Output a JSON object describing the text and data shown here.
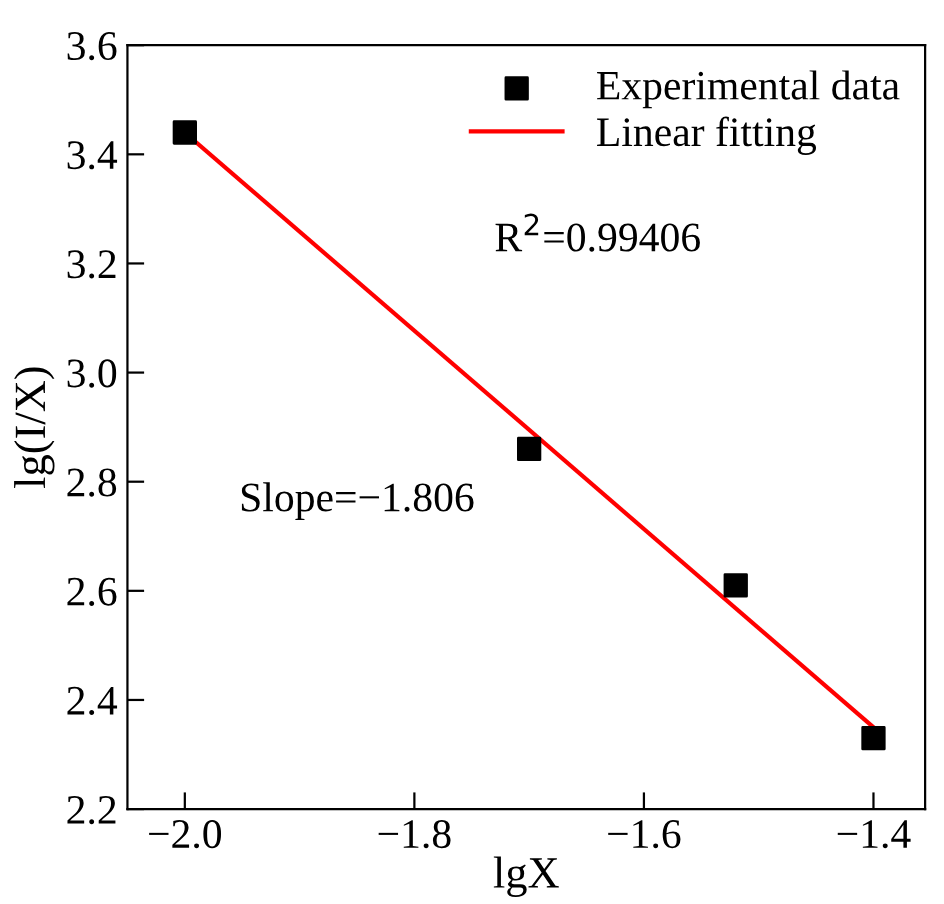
{
  "chart_data": {
    "type": "scatter",
    "xlabel": "lgX",
    "ylabel": "lg(I/X)",
    "annotations": [
      "R$^{2}$=0.99406",
      "Slope=−1.806"
    ],
    "series": [
      {
        "name": "Experimental data",
        "color": "#000000",
        "marker": "square",
        "x": [
          -2.0,
          -1.7,
          -1.52,
          -1.4
        ],
        "values": [
          3.44,
          2.86,
          2.61,
          2.33
        ]
      },
      {
        "name": "Linear fitting",
        "type": "line",
        "color": "#ff0000",
        "marker": "none",
        "line_style": "solid",
        "x": [
          -2.0,
          -1.4
        ],
        "values": [
          3.44,
          2.35
        ]
      }
    ],
    "xlim": [
      -2.05,
      -1.355
    ],
    "ylim": [
      2.2,
      3.6
    ],
    "xticks": [
      {
        "value": -2.0,
        "label": "−2.0"
      },
      {
        "value": -1.8,
        "label": "−1.8"
      },
      {
        "value": -1.6,
        "label": "−1.6"
      },
      {
        "value": -1.4,
        "label": "−1.4"
      }
    ],
    "yticks": [
      2.2,
      2.4,
      2.6,
      2.8,
      {
        "value": 3.0,
        "label": "3.0"
      },
      3.2,
      3.4,
      3.6
    ],
    "grid": false,
    "legend": "top right"
  }
}
